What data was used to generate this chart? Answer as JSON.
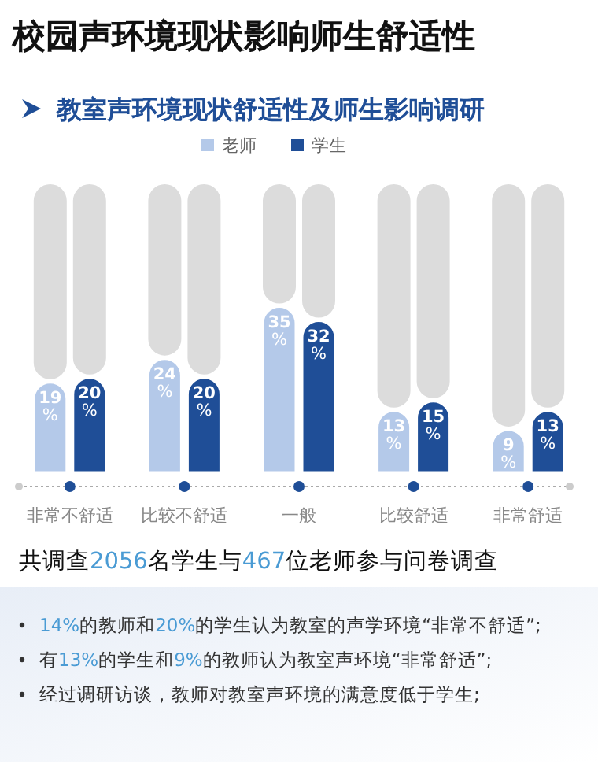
{
  "chart_data": {
    "type": "bar",
    "title": "校园声环境现状影响师生舒适性",
    "subtitle": "教室声环境现状舒适性及师生影响调研",
    "categories": [
      "非常不舒适",
      "比较不舒适",
      "一般",
      "比较舒适",
      "非常舒适"
    ],
    "legend": "top",
    "series": [
      {
        "name": "老师",
        "color": "#b4c9e9",
        "values": [
          19,
          24,
          35,
          13,
          9
        ],
        "value_labels": [
          "19%",
          "24%",
          "35%",
          "13%",
          "9%"
        ]
      },
      {
        "name": "学生",
        "color": "#1f4e97",
        "values": [
          20,
          20,
          32,
          15,
          13
        ],
        "value_labels": [
          "20%",
          "20%",
          "32%",
          "15%",
          "13%"
        ]
      }
    ],
    "annotations": [
      "共调查2056名学生与467位老师参与问卷调查",
      "14%的教师和20%的学生认为教室的声学环境“非常不舒适”;",
      "有13%的学生和9%的教师认为教室声环境“非常舒适”;",
      "经过调研访谈，教师对教室声环境的满意度低于学生;"
    ]
  }
}
